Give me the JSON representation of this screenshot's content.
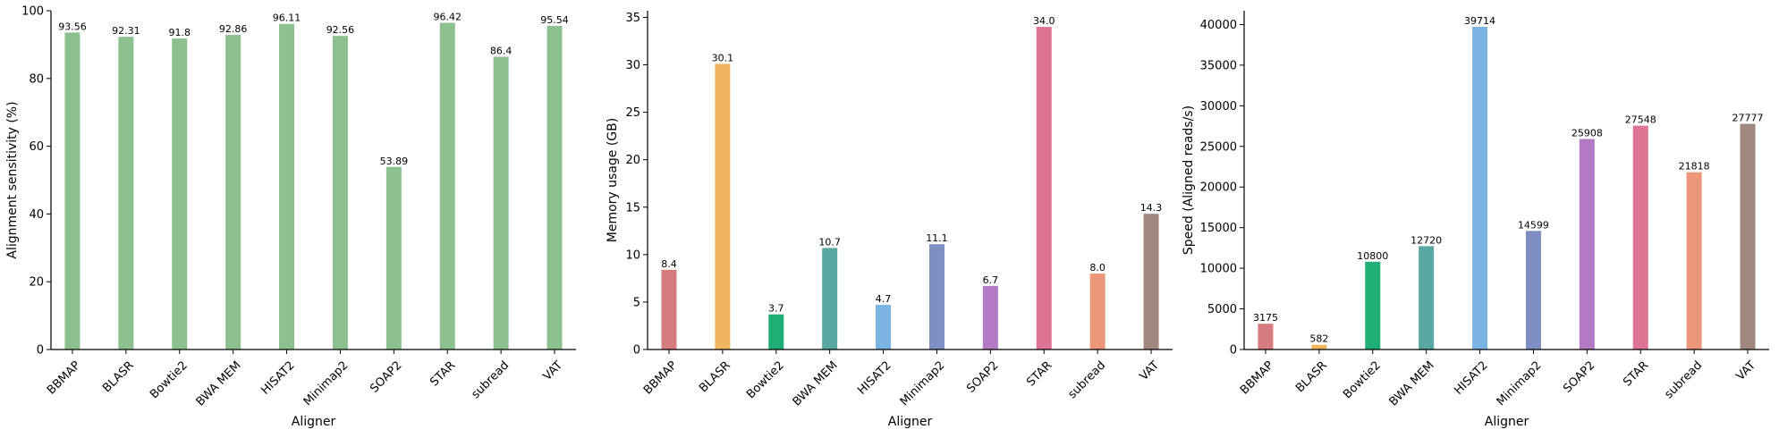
{
  "chart_data": [
    {
      "type": "bar",
      "xlabel": "Aligner",
      "ylabel": "Alignment sensitivity (%)",
      "ylim": [
        0,
        100
      ],
      "yticks": [
        "0",
        "20",
        "40",
        "60",
        "80",
        "100"
      ],
      "categories": [
        "BBMAP",
        "BLASR",
        "Bowtie2",
        "BWA MEM",
        "HISAT2",
        "Minimap2",
        "SOAP2",
        "STAR",
        "subread",
        "VAT"
      ],
      "values": [
        93.56,
        92.31,
        91.8,
        92.86,
        96.11,
        92.56,
        53.89,
        96.42,
        86.4,
        95.54
      ],
      "value_labels": [
        "93.56",
        "92.31",
        "91.8",
        "92.86",
        "96.11",
        "92.56",
        "53.89",
        "96.42",
        "86.4",
        "95.54"
      ],
      "colors": [
        "#8dc08f",
        "#8dc08f",
        "#8dc08f",
        "#8dc08f",
        "#8dc08f",
        "#8dc08f",
        "#8dc08f",
        "#8dc08f",
        "#8dc08f",
        "#8dc08f"
      ],
      "legend": "none",
      "grid": false
    },
    {
      "type": "bar",
      "xlabel": "Aligner",
      "ylabel": "Memory usage (GB)",
      "ylim": [
        0,
        35.7
      ],
      "yticks": [
        "0",
        "5",
        "10",
        "15",
        "20",
        "25",
        "30",
        "35"
      ],
      "categories": [
        "BBMAP",
        "BLASR",
        "Bowtie2",
        "BWA MEM",
        "HISAT2",
        "Minimap2",
        "SOAP2",
        "STAR",
        "subread",
        "VAT"
      ],
      "values": [
        8.4,
        30.1,
        3.7,
        10.7,
        4.7,
        11.1,
        6.7,
        34.0,
        8.0,
        14.3
      ],
      "value_labels": [
        "8.4",
        "30.1",
        "3.7",
        "10.7",
        "4.7",
        "11.1",
        "6.7",
        "34.0",
        "8.0",
        "14.3"
      ],
      "colors": [
        "#d67b80",
        "#efb55f",
        "#1faf76",
        "#58a7a2",
        "#79b4e3",
        "#7f8fc4",
        "#b27ac2",
        "#dd7493",
        "#ec977a",
        "#a0887e"
      ],
      "legend": "none",
      "grid": false
    },
    {
      "type": "bar",
      "xlabel": "Aligner",
      "ylabel": "Speed (Aligned reads/s)",
      "ylim": [
        0,
        41700
      ],
      "yticks": [
        "0",
        "5000",
        "10000",
        "15000",
        "20000",
        "25000",
        "30000",
        "35000",
        "40000"
      ],
      "categories": [
        "BBMAP",
        "BLASR",
        "Bowtie2",
        "BWA MEM",
        "HISAT2",
        "Minimap2",
        "SOAP2",
        "STAR",
        "subread",
        "VAT"
      ],
      "values": [
        3175,
        582,
        10800,
        12720,
        39714,
        14599,
        25908,
        27548,
        21818,
        27777
      ],
      "value_labels": [
        "3175",
        "582",
        "10800",
        "12720",
        "39714",
        "14599",
        "25908",
        "27548",
        "21818",
        "27777"
      ],
      "colors": [
        "#d67b80",
        "#efb55f",
        "#1faf76",
        "#58a7a2",
        "#79b4e3",
        "#7f8fc4",
        "#b27ac2",
        "#dd7493",
        "#ec977a",
        "#a0887e"
      ],
      "legend": "none",
      "grid": false
    }
  ]
}
